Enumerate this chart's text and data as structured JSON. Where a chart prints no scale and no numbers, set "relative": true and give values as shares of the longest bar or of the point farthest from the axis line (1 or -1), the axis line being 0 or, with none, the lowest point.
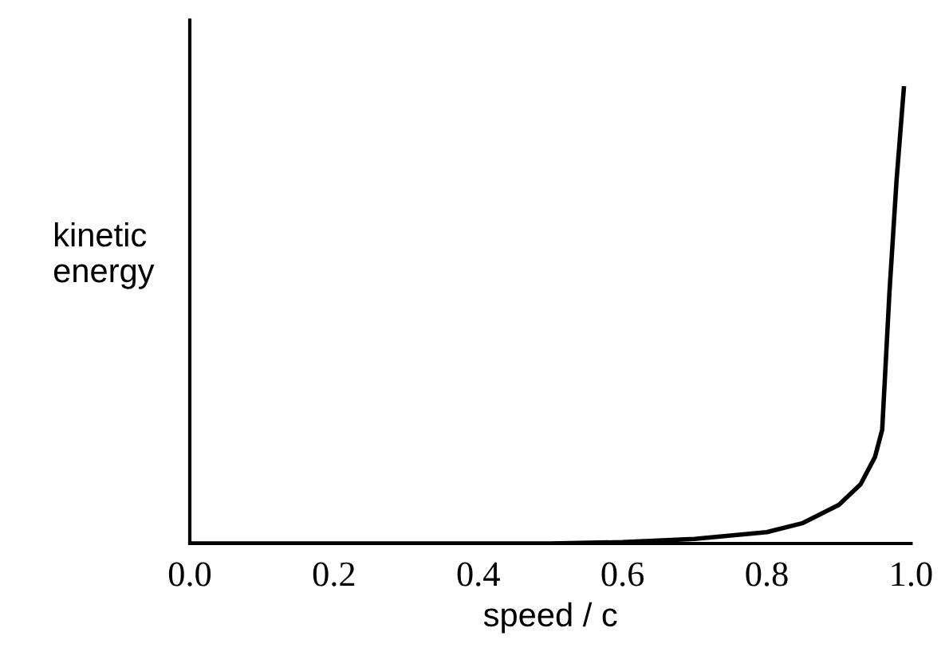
{
  "chart_data": {
    "type": "line",
    "relative": true,
    "xlabel": "speed / c",
    "ylabel": "kinetic\nenergy",
    "x": [
      0.0,
      0.5,
      0.6,
      0.7,
      0.8,
      0.85,
      0.9,
      0.93,
      0.95,
      0.96,
      0.97,
      0.98,
      0.99
    ],
    "series": [
      {
        "color": "#000000",
        "values": [
          0,
          0,
          0.003,
          0.01,
          0.025,
          0.045,
          0.085,
          0.13,
          0.19,
          0.25,
          0.55,
          0.8,
          1
        ]
      }
    ],
    "xlim": [
      0.0,
      1.0
    ],
    "xticks": [
      {
        "value": 0.0,
        "label": "0.0"
      },
      {
        "value": 0.2,
        "label": "0.2"
      },
      {
        "value": 0.4,
        "label": "0.4"
      },
      {
        "value": 0.6,
        "label": "0.6"
      },
      {
        "value": 0.8,
        "label": "0.8"
      },
      {
        "value": 1.0,
        "label": "1.0"
      }
    ],
    "tick_labels": "x",
    "grid": false,
    "legend": false,
    "marker": "none",
    "line_style": "solid"
  }
}
